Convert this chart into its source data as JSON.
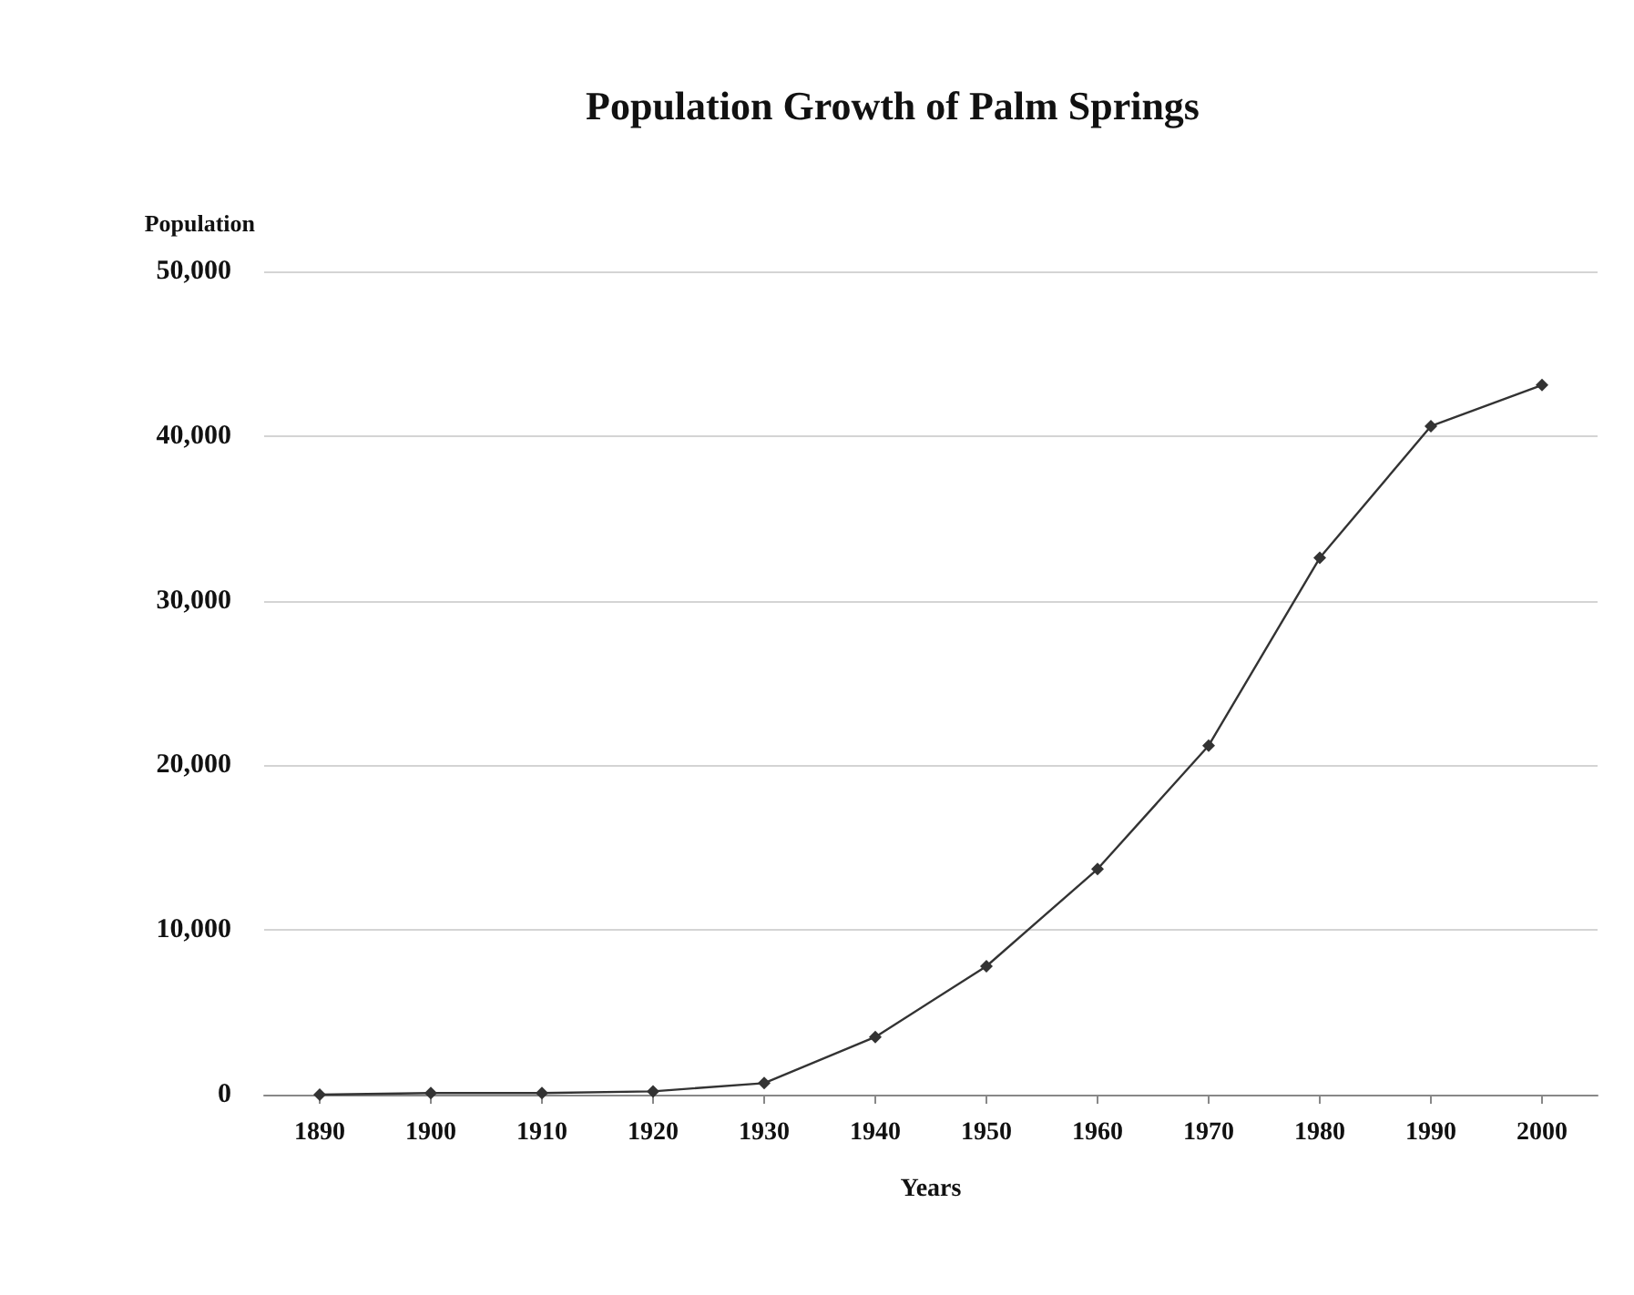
{
  "chart_data": {
    "type": "line",
    "title": "Population Growth of Palm Springs",
    "xlabel": "Years",
    "ylabel": "Population",
    "categories": [
      "1890",
      "1900",
      "1910",
      "1920",
      "1930",
      "1940",
      "1950",
      "1960",
      "1970",
      "1980",
      "1990",
      "2000"
    ],
    "series": [
      {
        "color": "#333333",
        "values": [
          0,
          100,
          100,
          200,
          700,
          3500,
          7800,
          13700,
          21200,
          32600,
          40600,
          43100
        ]
      }
    ],
    "ylim": [
      0,
      50000
    ],
    "yticks": [
      0,
      {
        "value": 10000,
        "label": "10,000"
      },
      {
        "value": 20000,
        "label": "20,000"
      },
      {
        "value": 30000,
        "label": "30,000"
      },
      {
        "value": 40000,
        "label": "40,000"
      },
      {
        "value": 50000,
        "label": "50,000"
      }
    ],
    "grid": "y",
    "marker": "diamond",
    "line_style": "solid"
  }
}
